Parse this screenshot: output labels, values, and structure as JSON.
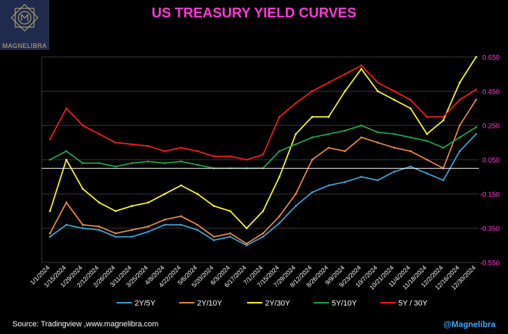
{
  "logo": {
    "text": "MAGNELIBRA",
    "icon": "magnelibra-logo-icon",
    "color": "#c9b27a"
  },
  "title": "US TREASURY YIELD CURVES",
  "source": "Source:  Tradingview ,www.magnelibra.com",
  "handle": "@Magnelibra",
  "chart_data": {
    "type": "line",
    "title": "US TREASURY YIELD CURVES",
    "xlabel": "",
    "ylabel": "",
    "ylim": [
      -0.55,
      0.65
    ],
    "y_ticks": [
      "0.650",
      "0.450",
      "0.250",
      "0.050",
      "-0.150",
      "-0.350",
      "-0.550"
    ],
    "x": [
      "1/1/2024",
      "1/15/2024",
      "1/29/2024",
      "2/12/2024",
      "2/26/2024",
      "3/11/2024",
      "3/25/2024",
      "4/8/2024",
      "4/22/2024",
      "5/6/2024",
      "5/20/2024",
      "6/3/2024",
      "6/17/2024",
      "7/1/2024",
      "7/15/2024",
      "7/29/2024",
      "8/12/2024",
      "8/26/2024",
      "9/9/2024",
      "9/23/2024",
      "10/7/2024",
      "10/21/2024",
      "11/4/2024",
      "11/18/2024",
      "12/2/2024",
      "12/16/2024",
      "12/30/2024"
    ],
    "zero_line": 0.0,
    "grid": true,
    "legend_position": "bottom",
    "series": [
      {
        "name": "2Y/5Y",
        "color": "#3aa7e0",
        "values": [
          -0.4,
          -0.33,
          -0.35,
          -0.36,
          -0.4,
          -0.4,
          -0.37,
          -0.33,
          -0.33,
          -0.36,
          -0.42,
          -0.4,
          -0.45,
          -0.4,
          -0.32,
          -0.22,
          -0.14,
          -0.1,
          -0.08,
          -0.05,
          -0.07,
          -0.02,
          0.01,
          -0.03,
          -0.07,
          0.1,
          0.2
        ]
      },
      {
        "name": "2Y/10Y",
        "color": "#f08a4b",
        "values": [
          -0.38,
          -0.2,
          -0.33,
          -0.34,
          -0.38,
          -0.36,
          -0.34,
          -0.3,
          -0.28,
          -0.33,
          -0.4,
          -0.38,
          -0.44,
          -0.38,
          -0.28,
          -0.15,
          0.05,
          0.12,
          0.1,
          0.18,
          0.15,
          0.12,
          0.1,
          0.05,
          0.0,
          0.25,
          0.4
        ]
      },
      {
        "name": "2Y/30Y",
        "color": "#ffff1a",
        "values": [
          -0.25,
          0.05,
          -0.12,
          -0.2,
          -0.25,
          -0.22,
          -0.2,
          -0.15,
          -0.1,
          -0.15,
          -0.22,
          -0.25,
          -0.35,
          -0.25,
          -0.05,
          0.2,
          0.3,
          0.3,
          0.45,
          0.58,
          0.45,
          0.4,
          0.35,
          0.2,
          0.28,
          0.5,
          0.65
        ]
      },
      {
        "name": "5Y/10Y",
        "color": "#22a94a",
        "values": [
          0.05,
          0.1,
          0.03,
          0.03,
          0.01,
          0.03,
          0.04,
          0.03,
          0.04,
          0.02,
          0.0,
          0.0,
          0.0,
          0.0,
          0.1,
          0.14,
          0.18,
          0.2,
          0.22,
          0.25,
          0.21,
          0.2,
          0.18,
          0.16,
          0.12,
          0.18,
          0.24
        ]
      },
      {
        "name": "5Y / 30Y",
        "color": "#ff1a1a",
        "values": [
          0.17,
          0.35,
          0.25,
          0.2,
          0.15,
          0.14,
          0.13,
          0.1,
          0.12,
          0.1,
          0.07,
          0.07,
          0.05,
          0.08,
          0.3,
          0.38,
          0.45,
          0.5,
          0.55,
          0.6,
          0.5,
          0.45,
          0.4,
          0.3,
          0.3,
          0.4,
          0.46
        ]
      }
    ]
  }
}
